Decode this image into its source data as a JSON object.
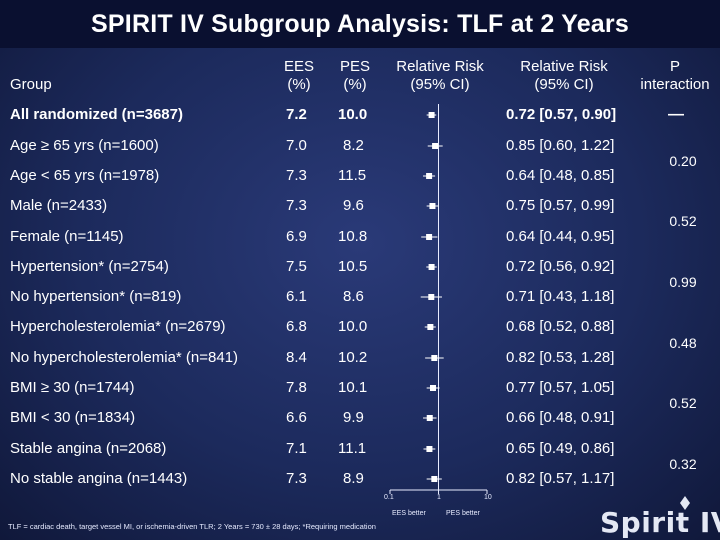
{
  "title": {
    "prefix": "SPIRIT IV Subgroup Analysis: ",
    "suffix": "TLF at 2 Years"
  },
  "headers": {
    "group": "Group",
    "ees_line1": "EES",
    "ees_line2": "(%)",
    "pes_line1": "PES",
    "pes_line2": "(%)",
    "rr_plot_line1": "Relative Risk",
    "rr_plot_line2": "(95% CI)",
    "rr_text_line1": "Relative Risk",
    "rr_text_line2": "(95% CI)",
    "p_line1": "P",
    "p_line2": "interaction"
  },
  "rows": [
    {
      "group": "All randomized (n=3687)",
      "ees": "7.2",
      "pes": "10.0",
      "rr_text": "0.72 [0.57, 0.90]",
      "rr": 0.72,
      "lo": 0.57,
      "hi": 0.9
    },
    {
      "group": "Age ≥ 65 yrs  (n=1600)",
      "ees": "7.0",
      "pes": "8.2",
      "rr_text": "0.85 [0.60, 1.22]",
      "rr": 0.85,
      "lo": 0.6,
      "hi": 1.22
    },
    {
      "group": "Age < 65 yrs  (n=1978)",
      "ees": "7.3",
      "pes": "11.5",
      "rr_text": "0.64 [0.48, 0.85]",
      "rr": 0.64,
      "lo": 0.48,
      "hi": 0.85
    },
    {
      "group": "Male (n=2433)",
      "ees": "7.3",
      "pes": "9.6",
      "rr_text": "0.75 [0.57, 0.99]",
      "rr": 0.75,
      "lo": 0.57,
      "hi": 0.99
    },
    {
      "group": "Female (n=1145)",
      "ees": "6.9",
      "pes": "10.8",
      "rr_text": "0.64 [0.44, 0.95]",
      "rr": 0.64,
      "lo": 0.44,
      "hi": 0.95
    },
    {
      "group": "Hypertension* (n=2754)",
      "ees": "7.5",
      "pes": "10.5",
      "rr_text": "0.72 [0.56, 0.92]",
      "rr": 0.72,
      "lo": 0.56,
      "hi": 0.92
    },
    {
      "group": "No hypertension* (n=819)",
      "ees": "6.1",
      "pes": "8.6",
      "rr_text": "0.71 [0.43, 1.18]",
      "rr": 0.71,
      "lo": 0.43,
      "hi": 1.18
    },
    {
      "group": "Hypercholesterolemia* (n=2679)",
      "ees": "6.8",
      "pes": "10.0",
      "rr_text": "0.68 [0.52, 0.88]",
      "rr": 0.68,
      "lo": 0.52,
      "hi": 0.88
    },
    {
      "group": "No hypercholesterolemia* (n=841)",
      "ees": "8.4",
      "pes": "10.2",
      "rr_text": "0.82 [0.53, 1.28]",
      "rr": 0.82,
      "lo": 0.53,
      "hi": 1.28
    },
    {
      "group": "BMI ≥ 30 (n=1744)",
      "ees": "7.8",
      "pes": "10.1",
      "rr_text": "0.77 [0.57, 1.05]",
      "rr": 0.77,
      "lo": 0.57,
      "hi": 1.05
    },
    {
      "group": "BMI < 30 (n=1834)",
      "ees": "6.6",
      "pes": "9.9",
      "rr_text": "0.66 [0.48, 0.91]",
      "rr": 0.66,
      "lo": 0.48,
      "hi": 0.91
    },
    {
      "group": "Stable angina (n=2068)",
      "ees": "7.1",
      "pes": "11.1",
      "rr_text": "0.65 [0.49, 0.86]",
      "rr": 0.65,
      "lo": 0.49,
      "hi": 0.86
    },
    {
      "group": "No stable angina (n=1443)",
      "ees": "7.3",
      "pes": "8.9",
      "rr_text": "0.82 [0.57, 1.17]",
      "rr": 0.82,
      "lo": 0.57,
      "hi": 1.17
    }
  ],
  "p_interaction": [
    "—",
    "0.20",
    "0.52",
    "0.99",
    "0.48",
    "0.52",
    "0.32"
  ],
  "axis": {
    "ticks": [
      "0.1",
      "1",
      "10"
    ],
    "left_label": "EES better",
    "right_label": "PES better"
  },
  "footnote": "TLF = cardiac death, target vessel MI, or ischemia-driven TLR; 2 Years = 730 ± 28 days; *Requiring medication",
  "logo": "Spirit IV",
  "colors": {
    "accent": "#ffffff",
    "background": "#1c2a5c",
    "title_bar": "#0a1030"
  },
  "chart_data": {
    "type": "forest",
    "scale": "log",
    "xlim": [
      0.1,
      10
    ],
    "reference_line": 1,
    "x_ticks": [
      0.1,
      1,
      10
    ],
    "xlabel_left": "EES better",
    "xlabel_right": "PES better"
  }
}
